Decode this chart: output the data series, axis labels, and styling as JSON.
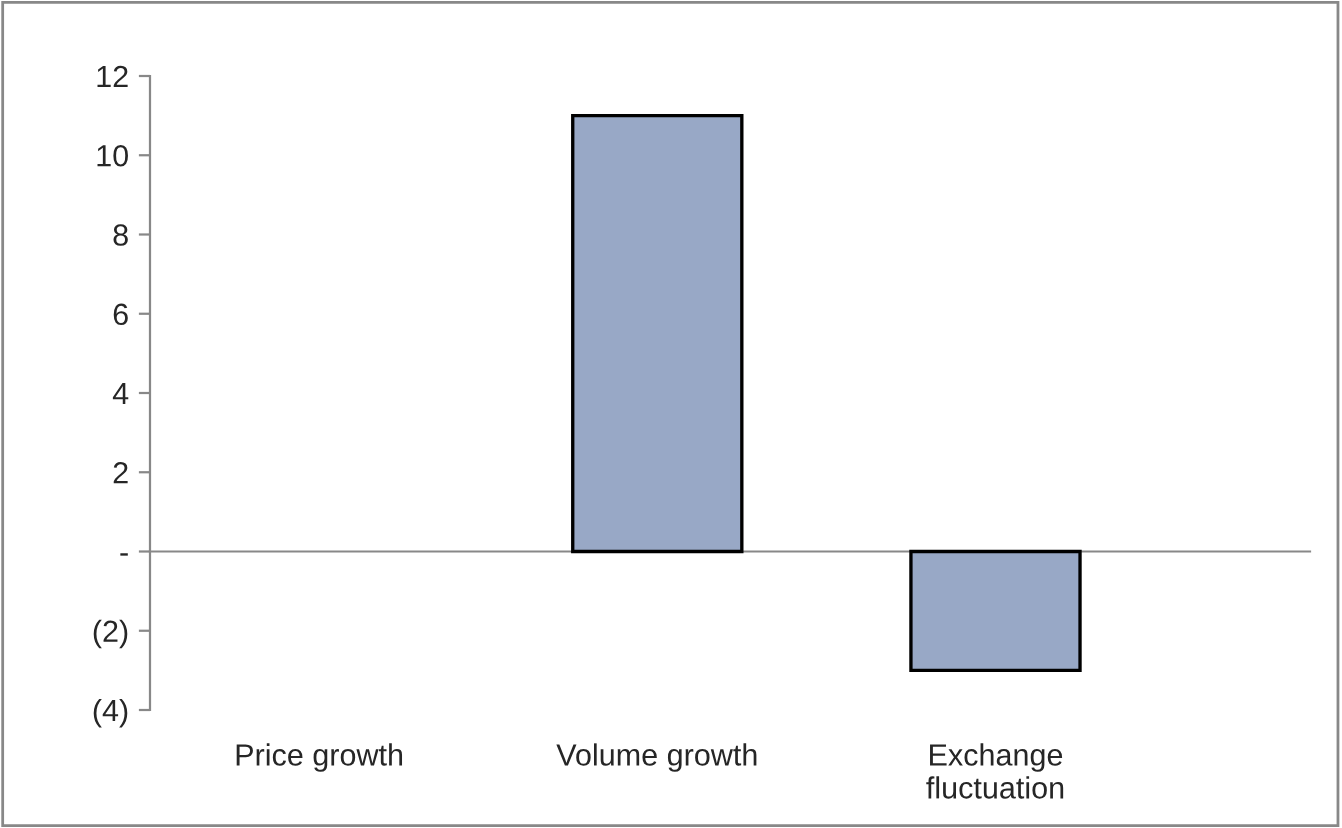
{
  "chart_data": {
    "type": "bar",
    "categories": [
      "Price growth",
      "Volume growth",
      "Exchange\nfluctuation"
    ],
    "values": [
      0,
      11,
      -3
    ],
    "color": "#98a8c6",
    "ylim": [
      -4,
      12
    ],
    "yticks": [
      {
        "value": -4,
        "label": "(4)"
      },
      {
        "value": -2,
        "label": "(2)"
      },
      {
        "value": 0,
        "label": "-"
      },
      2,
      4,
      6,
      8,
      10,
      12
    ]
  }
}
